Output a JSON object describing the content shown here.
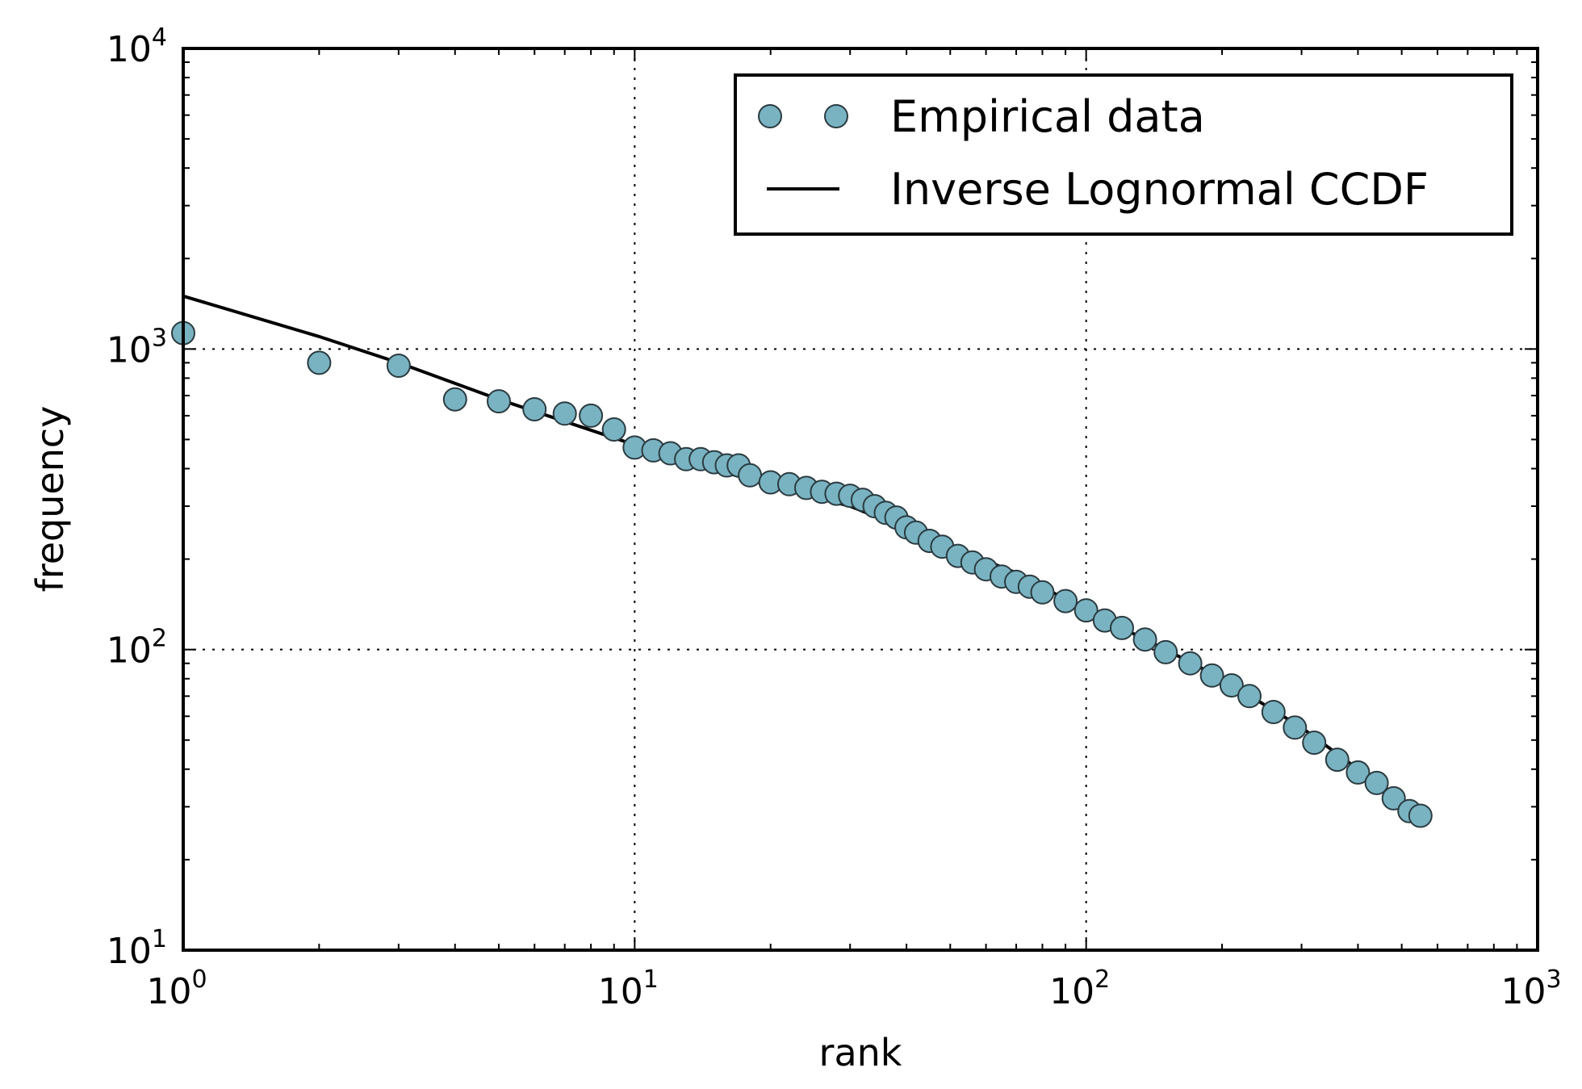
{
  "chart_data": {
    "type": "scatter",
    "xscale": "log",
    "yscale": "log",
    "xlabel": "rank",
    "ylabel": "frequency",
    "xlim": [
      1,
      1000
    ],
    "ylim": [
      10,
      10000
    ],
    "grid": true,
    "legend_position": "top-right",
    "x_ticks": [
      {
        "base": "10",
        "exp": "0"
      },
      {
        "base": "10",
        "exp": "1"
      },
      {
        "base": "10",
        "exp": "2"
      },
      {
        "base": "10",
        "exp": "3"
      }
    ],
    "y_ticks": [
      {
        "base": "10",
        "exp": "1"
      },
      {
        "base": "10",
        "exp": "2"
      },
      {
        "base": "10",
        "exp": "3"
      },
      {
        "base": "10",
        "exp": "4"
      }
    ],
    "series": [
      {
        "name": "Empirical data",
        "kind": "scatter",
        "color": "#79b3c2",
        "edge_color": "#2b3b40",
        "points": [
          [
            1,
            1130
          ],
          [
            2,
            900
          ],
          [
            3,
            880
          ],
          [
            4,
            680
          ],
          [
            5,
            670
          ],
          [
            6,
            630
          ],
          [
            7,
            610
          ],
          [
            8,
            600
          ],
          [
            9,
            540
          ],
          [
            10,
            470
          ],
          [
            11,
            460
          ],
          [
            12,
            450
          ],
          [
            13,
            430
          ],
          [
            14,
            430
          ],
          [
            15,
            420
          ],
          [
            16,
            410
          ],
          [
            17,
            410
          ],
          [
            18,
            380
          ],
          [
            20,
            360
          ],
          [
            22,
            355
          ],
          [
            24,
            345
          ],
          [
            26,
            335
          ],
          [
            28,
            330
          ],
          [
            30,
            325
          ],
          [
            32,
            315
          ],
          [
            34,
            300
          ],
          [
            36,
            285
          ],
          [
            38,
            275
          ],
          [
            40,
            255
          ],
          [
            42,
            245
          ],
          [
            45,
            230
          ],
          [
            48,
            220
          ],
          [
            52,
            205
          ],
          [
            56,
            195
          ],
          [
            60,
            185
          ],
          [
            65,
            175
          ],
          [
            70,
            168
          ],
          [
            75,
            162
          ],
          [
            80,
            155
          ],
          [
            90,
            145
          ],
          [
            100,
            135
          ],
          [
            110,
            125
          ],
          [
            120,
            118
          ],
          [
            135,
            108
          ],
          [
            150,
            98
          ],
          [
            170,
            90
          ],
          [
            190,
            82
          ],
          [
            210,
            76
          ],
          [
            230,
            70
          ],
          [
            260,
            62
          ],
          [
            290,
            55
          ],
          [
            320,
            49
          ],
          [
            360,
            43
          ],
          [
            400,
            39
          ],
          [
            440,
            36
          ],
          [
            480,
            32
          ],
          [
            520,
            29
          ],
          [
            550,
            28
          ]
        ]
      },
      {
        "name": "Inverse Lognormal CCDF",
        "kind": "line",
        "color": "#000000",
        "points": [
          [
            1,
            1500
          ],
          [
            2,
            1100
          ],
          [
            3,
            900
          ],
          [
            5,
            680
          ],
          [
            10,
            480
          ],
          [
            20,
            350
          ],
          [
            30,
            300
          ],
          [
            50,
            220
          ],
          [
            70,
            180
          ],
          [
            100,
            135
          ],
          [
            150,
            100
          ],
          [
            200,
            80
          ],
          [
            300,
            55
          ],
          [
            400,
            40
          ],
          [
            550,
            28
          ]
        ]
      }
    ]
  }
}
